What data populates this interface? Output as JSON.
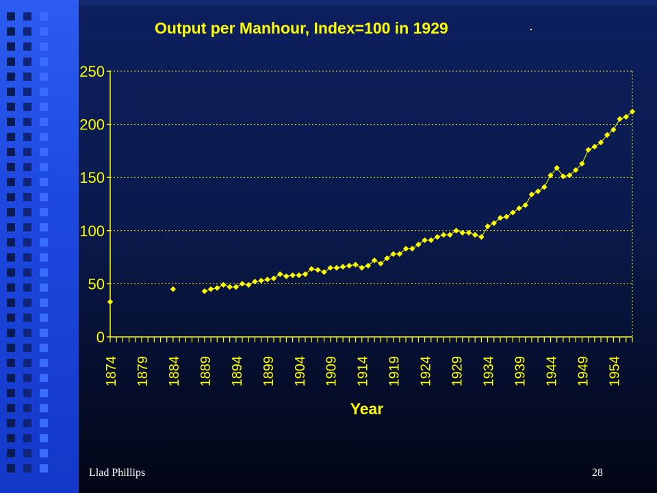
{
  "slide": {
    "author": "Llad Phillips",
    "page_number": "28"
  },
  "colors": {
    "accent": "#ffff00",
    "background": "#0a1a4c",
    "sidebar": "#1e49e0"
  },
  "chart_data": {
    "type": "line",
    "title": "Output per Manhour, Index=100 in 1929",
    "xlabel": "Year",
    "ylabel": "",
    "ylim": [
      0,
      250
    ],
    "yticks": [
      0,
      50,
      100,
      150,
      200,
      250
    ],
    "xlim": [
      1874,
      1957
    ],
    "xtick_labels": [
      "1874",
      "1879",
      "1884",
      "1889",
      "1894",
      "1899",
      "1904",
      "1909",
      "1914",
      "1919",
      "1924",
      "1929",
      "1934",
      "1939",
      "1944",
      "1949",
      "1954"
    ],
    "grid": "horizontal dotted",
    "legend": "none",
    "marker": "diamond",
    "series": [
      {
        "x": [
          1874,
          1884,
          1889,
          1890,
          1891,
          1892,
          1893,
          1894,
          1895,
          1896,
          1897,
          1898,
          1899,
          1900,
          1901,
          1902,
          1903,
          1904,
          1905,
          1906,
          1907,
          1908,
          1909,
          1910,
          1911,
          1912,
          1913,
          1914,
          1915,
          1916,
          1917,
          1918,
          1919,
          1920,
          1921,
          1922,
          1923,
          1924,
          1925,
          1926,
          1927,
          1928,
          1929,
          1930,
          1931,
          1932,
          1933,
          1934,
          1935,
          1936,
          1937,
          1938,
          1939,
          1940,
          1941,
          1942,
          1943,
          1944,
          1945,
          1946,
          1947,
          1948,
          1949,
          1950,
          1951,
          1952,
          1953,
          1954,
          1955,
          1956,
          1957
        ],
        "values": [
          33,
          45,
          43,
          45,
          46,
          49,
          47,
          47,
          50,
          49,
          52,
          53,
          54,
          55,
          59,
          57,
          58,
          58,
          59,
          64,
          63,
          61,
          65,
          65,
          66,
          67,
          68,
          65,
          67,
          72,
          69,
          74,
          78,
          78,
          83,
          83,
          87,
          91,
          91,
          94,
          96,
          96,
          100,
          98,
          98,
          96,
          94,
          104,
          107,
          112,
          113,
          117,
          121,
          124,
          134,
          137,
          141,
          152,
          159,
          151,
          152,
          157,
          163,
          176,
          179,
          183,
          190,
          195,
          205,
          207,
          212
        ]
      }
    ]
  }
}
